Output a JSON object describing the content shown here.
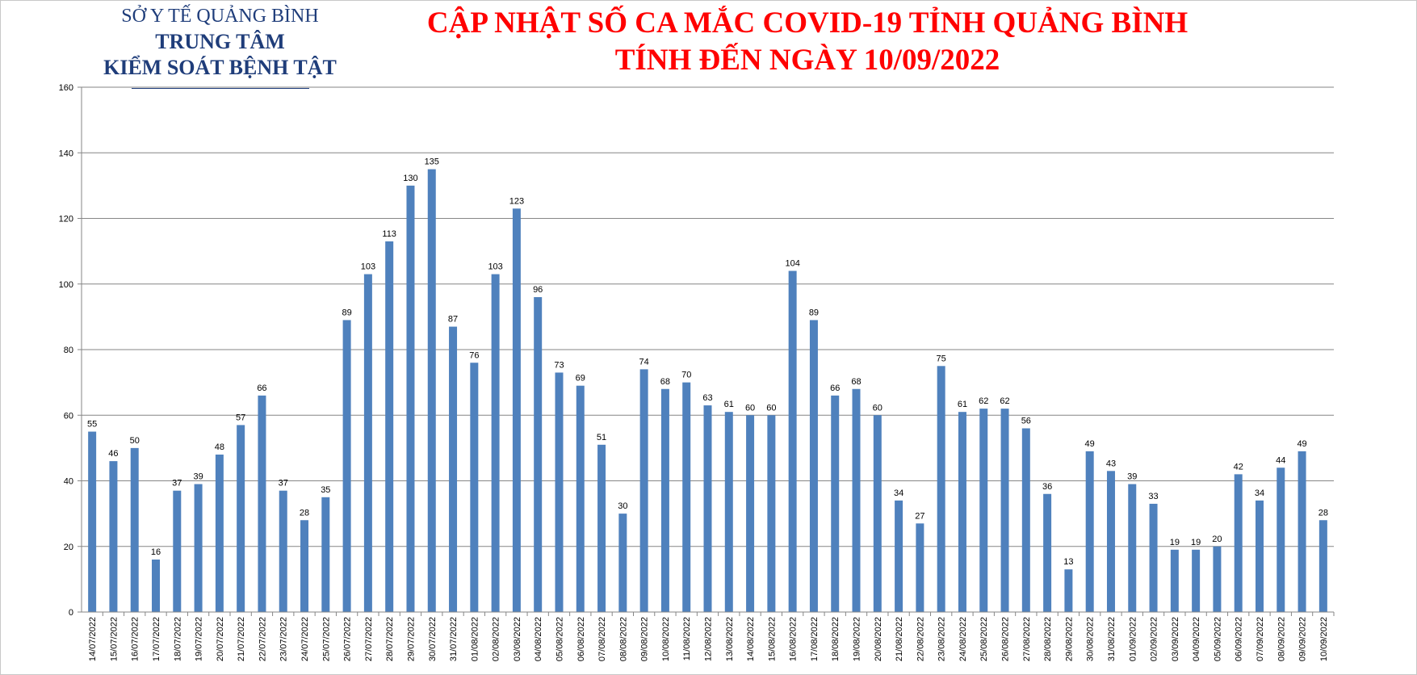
{
  "header": {
    "org_line1": "SỞ Y TẾ QUẢNG BÌNH",
    "org_line2": "TRUNG TÂM",
    "org_line3": "KIỂM SOÁT BỆNH TẬT",
    "title_line1": "CẬP NHẬT SỐ CA MẮC COVID-19 TỈNH QUẢNG BÌNH",
    "title_line2": "TÍNH ĐẾN NGÀY 10/09/2022"
  },
  "colors": {
    "bar": "#4f81bd",
    "gridline": "#868686",
    "title": "#ff0000",
    "org": "#1f3d7a"
  },
  "chart_data": {
    "type": "bar",
    "ylim": [
      0,
      160
    ],
    "yticks": [
      0,
      20,
      40,
      60,
      80,
      100,
      120,
      140,
      160
    ],
    "grid": true,
    "legend": "none",
    "categories": [
      "14/07/2022",
      "15/07/2022",
      "16/07/2022",
      "17/07/2022",
      "18/07/2022",
      "19/07/2022",
      "20/07/2022",
      "21/07/2022",
      "22/07/2022",
      "23/07/2022",
      "24/07/2022",
      "25/07/2022",
      "26/07/2022",
      "27/07/2022",
      "28/07/2022",
      "29/07/2022",
      "30/07/2022",
      "31/07/2022",
      "01/08/2022",
      "02/08/2022",
      "03/08/2022",
      "04/08/2022",
      "05/08/2022",
      "06/08/2022",
      "07/08/2022",
      "08/08/2022",
      "09/08/2022",
      "10/08/2022",
      "11/08/2022",
      "12/08/2022",
      "13/08/2022",
      "14/08/2022",
      "15/08/2022",
      "16/08/2022",
      "17/08/2022",
      "18/08/2022",
      "19/08/2022",
      "20/08/2022",
      "21/08/2022",
      "22/08/2022",
      "23/08/2022",
      "24/08/2022",
      "25/08/2022",
      "26/08/2022",
      "27/08/2022",
      "28/08/2022",
      "29/08/2022",
      "30/08/2022",
      "31/08/2022",
      "01/09/2022",
      "02/09/2022",
      "03/09/2022",
      "04/09/2022",
      "05/09/2022",
      "06/09/2022",
      "07/09/2022",
      "08/09/2022",
      "09/09/2022",
      "10/09/2022"
    ],
    "values": [
      55,
      46,
      50,
      16,
      37,
      39,
      48,
      57,
      66,
      37,
      28,
      35,
      89,
      103,
      113,
      130,
      135,
      87,
      76,
      103,
      123,
      96,
      73,
      69,
      51,
      30,
      74,
      68,
      70,
      63,
      61,
      60,
      60,
      104,
      89,
      66,
      68,
      60,
      34,
      27,
      75,
      61,
      62,
      62,
      56,
      36,
      13,
      49,
      43,
      39,
      33,
      19,
      19,
      20,
      42,
      34,
      44,
      49,
      28
    ]
  }
}
